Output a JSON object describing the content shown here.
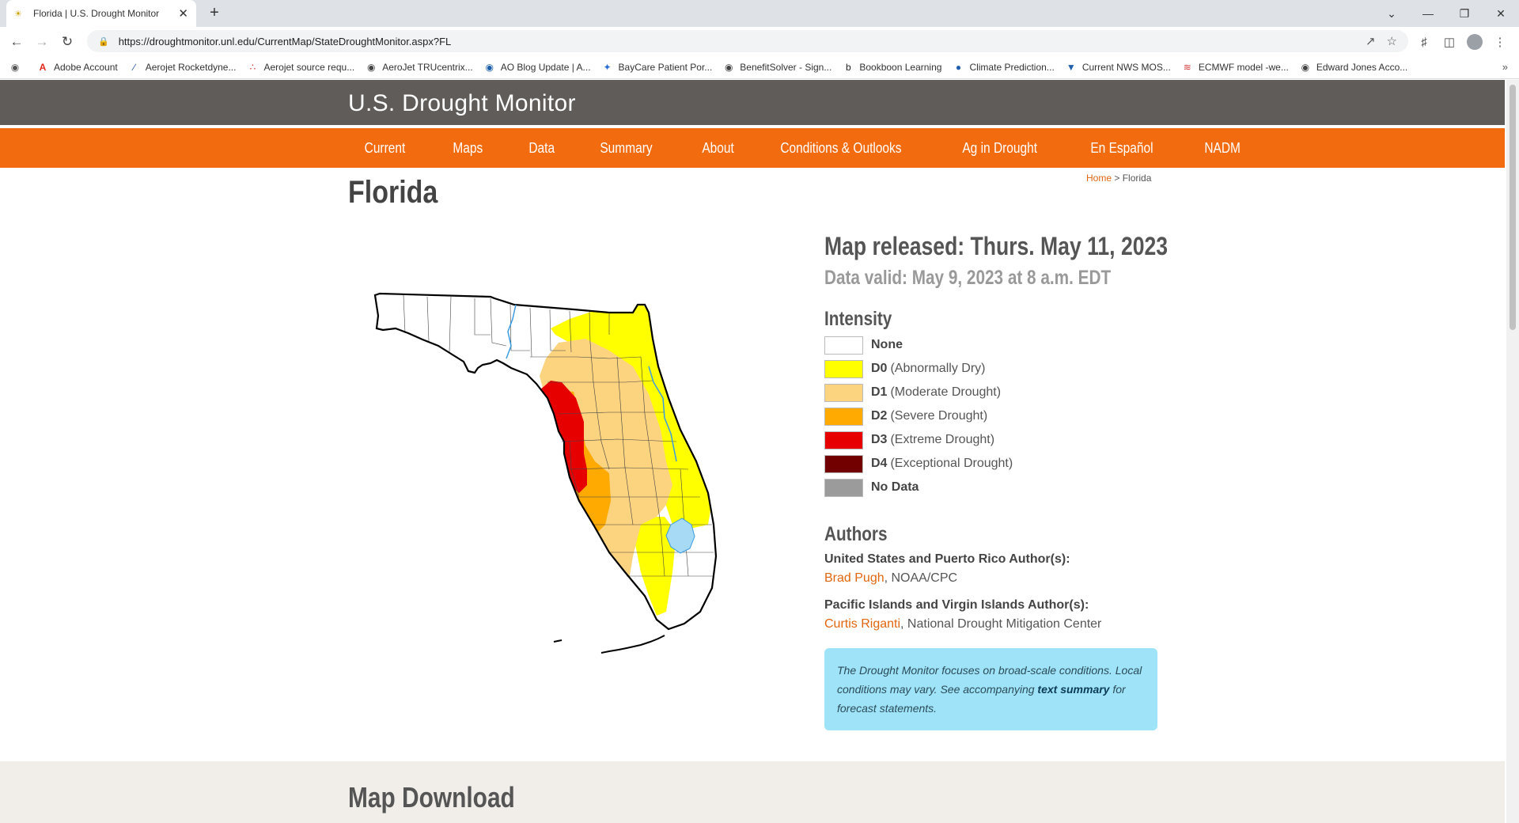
{
  "browser": {
    "tab_title": "Florida | U.S. Drought Monitor",
    "url": "https://droughtmonitor.unl.edu/CurrentMap/StateDroughtMonitor.aspx?FL",
    "bookmarks": [
      {
        "label": "Adobe Account",
        "icon": "adobe-icon",
        "color": "#e1251b"
      },
      {
        "label": "Aerojet Rocketdyne...",
        "icon": "swoosh-icon",
        "color": "#1f4e9c"
      },
      {
        "label": "Aerojet source requ...",
        "icon": "dots-icon",
        "color": "#d0302a"
      },
      {
        "label": "AeroJet TRUcentrix...",
        "icon": "globe-icon",
        "color": "#444444"
      },
      {
        "label": "AO Blog Update | A...",
        "icon": "globe-icon",
        "color": "#1a5fa8"
      },
      {
        "label": "BayCare Patient Por...",
        "icon": "star-icon",
        "color": "#2a6fd1"
      },
      {
        "label": "BenefitSolver - Sign...",
        "icon": "globe-icon",
        "color": "#444444"
      },
      {
        "label": "Bookboon Learning",
        "icon": "b-icon",
        "color": "#222222"
      },
      {
        "label": "Climate Prediction...",
        "icon": "noaa-icon",
        "color": "#1f5fae"
      },
      {
        "label": "Current NWS MOS...",
        "icon": "nws-icon",
        "color": "#1f5fae"
      },
      {
        "label": "ECMWF model -we...",
        "icon": "chart-icon",
        "color": "#d23a3a"
      },
      {
        "label": "Edward Jones Acco...",
        "icon": "globe-icon",
        "color": "#444444"
      }
    ]
  },
  "site": {
    "title": "U.S. Drought Monitor",
    "nav": [
      "Current",
      "Maps",
      "Data",
      "Summary",
      "About",
      "Conditions & Outlooks",
      "Ag in Drought",
      "En Español",
      "NADM"
    ]
  },
  "page": {
    "heading": "Florida",
    "breadcrumb_home": "Home",
    "breadcrumb_sep": ">",
    "breadcrumb_current": "Florida",
    "released": "Map released: Thurs. May 11, 2023",
    "valid": "Data valid: May 9, 2023 at 8 a.m. EDT",
    "intensity_title": "Intensity",
    "legend": [
      {
        "code": "None",
        "desc": "",
        "color": "#ffffff"
      },
      {
        "code": "D0",
        "desc": "(Abnormally Dry)",
        "color": "#ffff00"
      },
      {
        "code": "D1",
        "desc": "(Moderate Drought)",
        "color": "#fcd37f"
      },
      {
        "code": "D2",
        "desc": "(Severe Drought)",
        "color": "#ffaa00"
      },
      {
        "code": "D3",
        "desc": "(Extreme Drought)",
        "color": "#e60000"
      },
      {
        "code": "D4",
        "desc": "(Exceptional Drought)",
        "color": "#730000"
      },
      {
        "code": "No Data",
        "desc": "",
        "color": "#9b9b9b"
      }
    ],
    "authors_title": "Authors",
    "us_authors_label": "United States and Puerto Rico Author(s):",
    "us_author_name": "Brad Pugh",
    "us_author_org": ", NOAA/CPC",
    "pi_authors_label": "Pacific Islands and Virgin Islands Author(s):",
    "pi_author_name": "Curtis Riganti",
    "pi_author_org": ", National Drought Mitigation Center",
    "info_pre": "The Drought Monitor focuses on broad-scale conditions. Local conditions may vary. See accompanying ",
    "info_link": "text summary",
    "info_post": " for forecast statements.",
    "download_title": "Map Download"
  }
}
